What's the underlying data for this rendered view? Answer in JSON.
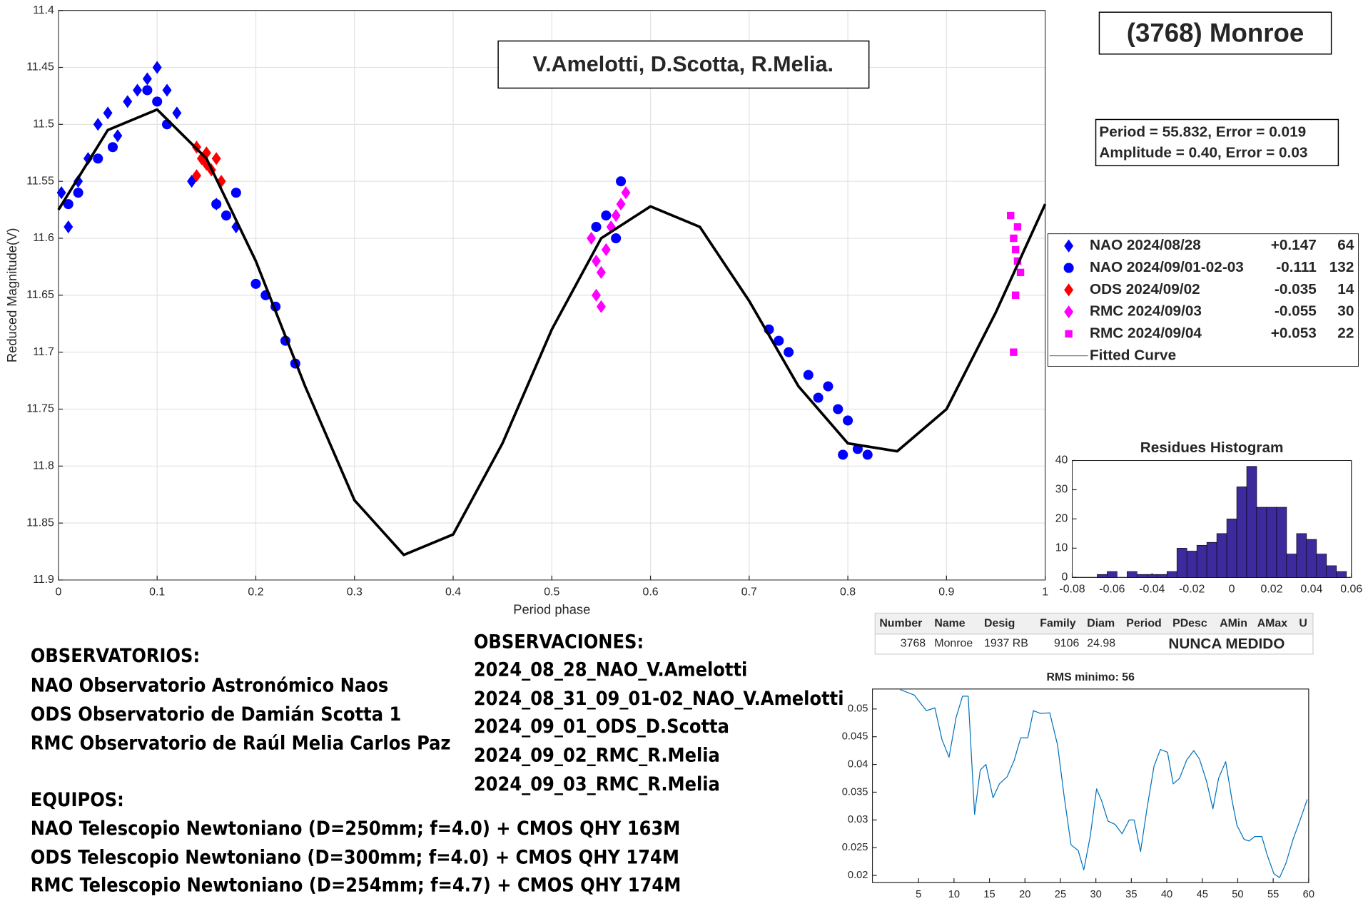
{
  "chart_data": [
    {
      "type": "scatter",
      "title": "(3768) Monroe",
      "annotations": [
        "V.Amelotti, D.Scotta, R.Melia.",
        "Period =  55.832, Error = 0.019",
        "Amplitude = 0.40, Error = 0.03"
      ],
      "xlabel": "Period phase",
      "ylabel": "Reduced Magnitude(V)",
      "xlim": [
        0,
        1
      ],
      "ylim": [
        11.9,
        11.4
      ],
      "xticks": [
        0,
        0.1,
        0.2,
        0.3,
        0.4,
        0.5,
        0.6,
        0.7,
        0.8,
        0.9,
        1
      ],
      "yticks": [
        11.4,
        11.45,
        11.5,
        11.55,
        11.6,
        11.65,
        11.7,
        11.75,
        11.8,
        11.85,
        11.9
      ],
      "grid": true,
      "legend": "right",
      "series": [
        {
          "name": "NAO 2024/08/28",
          "offset": "+0.147",
          "count": 64,
          "color": "#0000ff",
          "marker": "diamond",
          "x": [
            0.003,
            0.01,
            0.02,
            0.03,
            0.04,
            0.05,
            0.06,
            0.07,
            0.08,
            0.09,
            0.1,
            0.11,
            0.12,
            0.135,
            0.16,
            0.18
          ],
          "values": [
            11.56,
            11.59,
            11.55,
            11.53,
            11.5,
            11.49,
            11.51,
            11.48,
            11.47,
            11.46,
            11.45,
            11.47,
            11.49,
            11.55,
            11.57,
            11.59
          ]
        },
        {
          "name": "NAO 2024/09/01-02-03",
          "offset": "-0.111",
          "count": 132,
          "color": "#0000ff",
          "marker": "circle",
          "x": [
            0.01,
            0.02,
            0.04,
            0.055,
            0.09,
            0.1,
            0.11,
            0.16,
            0.17,
            0.18,
            0.2,
            0.21,
            0.22,
            0.23,
            0.24,
            0.545,
            0.555,
            0.565,
            0.57,
            0.72,
            0.73,
            0.74,
            0.76,
            0.77,
            0.78,
            0.79,
            0.795,
            0.8,
            0.81,
            0.82
          ],
          "values": [
            11.57,
            11.56,
            11.53,
            11.52,
            11.47,
            11.48,
            11.5,
            11.57,
            11.58,
            11.56,
            11.64,
            11.65,
            11.66,
            11.69,
            11.71,
            11.59,
            11.58,
            11.6,
            11.55,
            11.68,
            11.69,
            11.7,
            11.72,
            11.74,
            11.73,
            11.75,
            11.79,
            11.76,
            11.785,
            11.79
          ]
        },
        {
          "name": "ODS 2024/09/02",
          "offset": "-0.035",
          "count": 14,
          "color": "#ff0000",
          "marker": "diamond",
          "x": [
            0.14,
            0.145,
            0.15,
            0.155,
            0.16,
            0.165,
            0.14,
            0.15
          ],
          "values": [
            11.52,
            11.53,
            11.535,
            11.54,
            11.53,
            11.55,
            11.545,
            11.525
          ]
        },
        {
          "name": "RMC 2024/09/03",
          "offset": "-0.055",
          "count": 30,
          "color": "#ff00ff",
          "marker": "diamond",
          "x": [
            0.54,
            0.545,
            0.55,
            0.555,
            0.56,
            0.565,
            0.57,
            0.575,
            0.55,
            0.545
          ],
          "values": [
            11.6,
            11.62,
            11.63,
            11.61,
            11.59,
            11.58,
            11.57,
            11.56,
            11.66,
            11.65
          ]
        },
        {
          "name": "RMC 2024/09/04",
          "offset": "+0.053",
          "count": 22,
          "color": "#ff00ff",
          "marker": "square",
          "x": [
            0.965,
            0.968,
            0.97,
            0.972,
            0.975,
            0.97,
            0.968,
            0.972
          ],
          "values": [
            11.58,
            11.6,
            11.61,
            11.62,
            11.63,
            11.65,
            11.7,
            11.59
          ]
        },
        {
          "name": "Fitted Curve",
          "color": "#000000",
          "marker": "line",
          "x": [
            0,
            0.05,
            0.1,
            0.15,
            0.2,
            0.25,
            0.3,
            0.35,
            0.4,
            0.45,
            0.5,
            0.55,
            0.6,
            0.65,
            0.7,
            0.75,
            0.8,
            0.85,
            0.9,
            0.95,
            1
          ],
          "values": [
            11.575,
            11.505,
            11.487,
            11.53,
            11.62,
            11.73,
            11.83,
            11.878,
            11.86,
            11.78,
            11.68,
            11.6,
            11.572,
            11.59,
            11.655,
            11.73,
            11.78,
            11.787,
            11.75,
            11.665,
            11.57
          ]
        }
      ]
    },
    {
      "type": "histogram",
      "title": "Residues Histogram",
      "color": "#3d2b9e",
      "bins": [
        -0.0675,
        -0.0625,
        -0.0575,
        -0.0525,
        -0.0475,
        -0.0425,
        -0.0375,
        -0.0325,
        -0.0275,
        -0.0225,
        -0.0175,
        -0.0125,
        -0.0075,
        -0.0025,
        0.0025,
        0.0075,
        0.0125,
        0.0175,
        0.0225,
        0.0275,
        0.0325,
        0.0375,
        0.0425,
        0.0475,
        0.0525,
        0.0575
      ],
      "values": [
        1,
        2,
        0,
        2,
        1,
        1,
        1,
        2,
        10,
        9,
        11,
        12,
        15,
        20,
        31,
        38,
        24,
        24,
        24,
        8,
        15,
        13,
        8,
        4,
        2
      ],
      "xlim": [
        -0.08,
        0.06
      ],
      "ylim": [
        0,
        40
      ],
      "xticks": [
        -0.08,
        -0.06,
        -0.04,
        -0.02,
        0,
        0.02,
        0.04,
        0.06
      ],
      "yticks": [
        0,
        10,
        20,
        30,
        40
      ]
    },
    {
      "type": "line",
      "title": "RMS minimo: 56",
      "color": "#0072bd",
      "x": [
        2.4,
        3.4,
        4.4,
        6.1,
        7.3,
        8.3,
        9.3,
        10.3,
        11.2,
        12,
        12.9,
        13.7,
        14.5,
        15.5,
        16.4,
        17.5,
        18.5,
        19.4,
        20.4,
        21.2,
        22.2,
        23.5,
        24.6,
        25.5,
        26.5,
        27.5,
        28.3,
        29.2,
        30.1,
        30.8,
        31.7,
        32.7,
        33.7,
        34.7,
        35.4,
        36.3,
        37.2,
        38.2,
        39.1,
        40.1,
        40.9,
        41.8,
        42.8,
        43.8,
        44.6,
        45.6,
        46.5,
        47.3,
        48.3,
        49.2,
        49.9,
        50.9,
        51.6,
        52.4,
        53.4,
        54.2,
        55.1,
        55.9,
        56.8,
        57.8,
        58.8,
        59.8
      ],
      "values": [
        0.0535,
        0.053,
        0.0525,
        0.0497,
        0.0502,
        0.0445,
        0.0413,
        0.0485,
        0.0523,
        0.0523,
        0.031,
        0.039,
        0.04,
        0.034,
        0.0365,
        0.0378,
        0.0408,
        0.0448,
        0.0448,
        0.0497,
        0.0492,
        0.0493,
        0.0435,
        0.0345,
        0.0255,
        0.0245,
        0.021,
        0.027,
        0.0356,
        0.0335,
        0.0298,
        0.0292,
        0.0275,
        0.03,
        0.03,
        0.0243,
        0.032,
        0.0397,
        0.0427,
        0.0422,
        0.0365,
        0.0375,
        0.0408,
        0.0425,
        0.041,
        0.037,
        0.032,
        0.0375,
        0.0405,
        0.0335,
        0.029,
        0.0265,
        0.0262,
        0.027,
        0.027,
        0.0235,
        0.0203,
        0.0196,
        0.0222,
        0.0265,
        0.03,
        0.0337
      ],
      "xlim": [
        -1.5,
        60
      ],
      "ylim": [
        0.0187,
        0.0536
      ],
      "xticks": [
        5,
        10,
        15,
        20,
        25,
        30,
        35,
        40,
        45,
        50,
        55,
        60
      ],
      "yticks": [
        0.02,
        0.025,
        0.03,
        0.035,
        0.04,
        0.045,
        0.05
      ]
    }
  ],
  "observatorios": {
    "title": "OBSERVATORIOS:",
    "lines": [
      "NAO Observatorio Astronómico Naos",
      "ODS Observatorio de Damián Scotta 1",
      "RMC Observatorio de Raúl Melia Carlos Paz"
    ]
  },
  "equipos": {
    "title": "EQUIPOS:",
    "lines": [
      "NAO Telescopio Newtoniano (D=250mm; f=4.0) + CMOS QHY 163M",
      "ODS Telescopio Newtoniano (D=300mm; f=4.0) + CMOS QHY 174M",
      "RMC Telescopio Newtoniano (D=254mm; f=4.7) + CMOS QHY 174M"
    ]
  },
  "observaciones": {
    "title": "OBSERVACIONES:",
    "lines": [
      "2024_08_28_NAO_V.Amelotti",
      "2024_08_31_09_01-02_NAO_V.Amelotti",
      "2024_09_01_ODS_D.Scotta",
      "2024_09_02_RMC_R.Melia",
      "2024_09_03_RMC_R.Melia"
    ]
  },
  "table": {
    "headers": [
      "Number",
      "Name",
      "Desig",
      "Family",
      "Diam",
      "Period",
      "PDesc",
      "AMin",
      "AMax",
      "U"
    ],
    "row": [
      3768,
      "Monroe",
      "1937 RB",
      9106,
      24.98,
      "NUNCA MEDIDO"
    ]
  }
}
